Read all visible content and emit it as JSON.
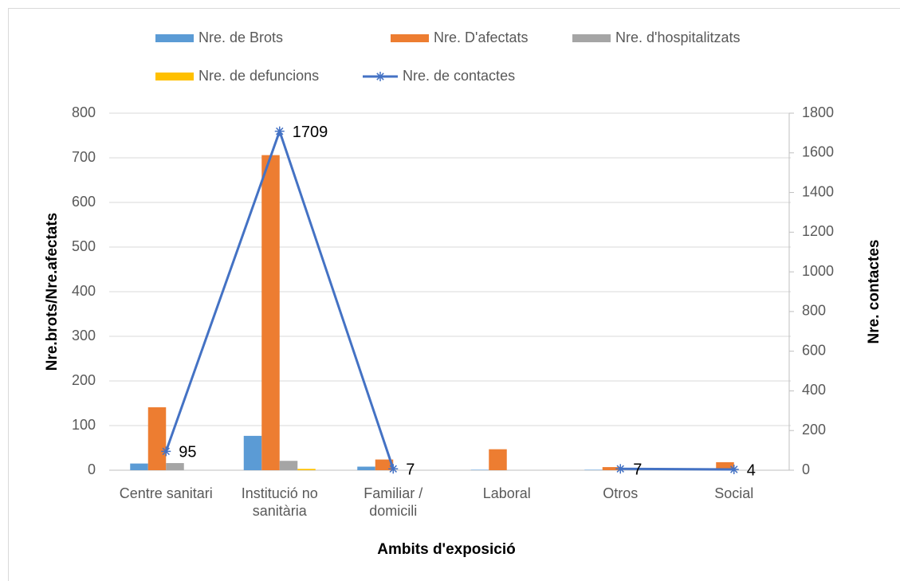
{
  "chart_data": {
    "type": "bar",
    "categories": [
      "Centre sanitari",
      "Institució no sanitària",
      "Familiar / domicili",
      "Laboral",
      "Otros",
      "Social"
    ],
    "series": [
      {
        "name": "Nre. de Brots",
        "color": "#5b9bd5",
        "values": [
          15,
          77,
          8,
          1,
          1,
          1
        ]
      },
      {
        "name": "Nre. D'afectats",
        "color": "#ed7d31",
        "values": [
          141,
          706,
          24,
          47,
          7,
          18
        ]
      },
      {
        "name": "Nre. d'hospitalitzats",
        "color": "#a5a5a5",
        "values": [
          16,
          21,
          0,
          0,
          0,
          0
        ]
      },
      {
        "name": "Nre. de defuncions",
        "color": "#ffc000",
        "values": [
          0,
          3,
          0,
          0,
          0,
          0
        ]
      },
      {
        "name": "Nre. de contactes",
        "color": "#4472c4",
        "type": "line",
        "axis": "y2",
        "values": [
          95,
          1709,
          7,
          null,
          7,
          4
        ]
      }
    ],
    "xlabel": "Ambits d'exposició",
    "ylabel": "Nre.brots/Nre.afectats",
    "y2label": "Nre. contactes",
    "ylim": [
      0,
      800
    ],
    "yticks": [
      0,
      100,
      200,
      300,
      400,
      500,
      600,
      700,
      800
    ],
    "y2lim": [
      0,
      1800
    ],
    "y2ticks": [
      0,
      200,
      400,
      600,
      800,
      1000,
      1200,
      1400,
      1600,
      1800
    ],
    "grid": true,
    "legend": "top"
  }
}
